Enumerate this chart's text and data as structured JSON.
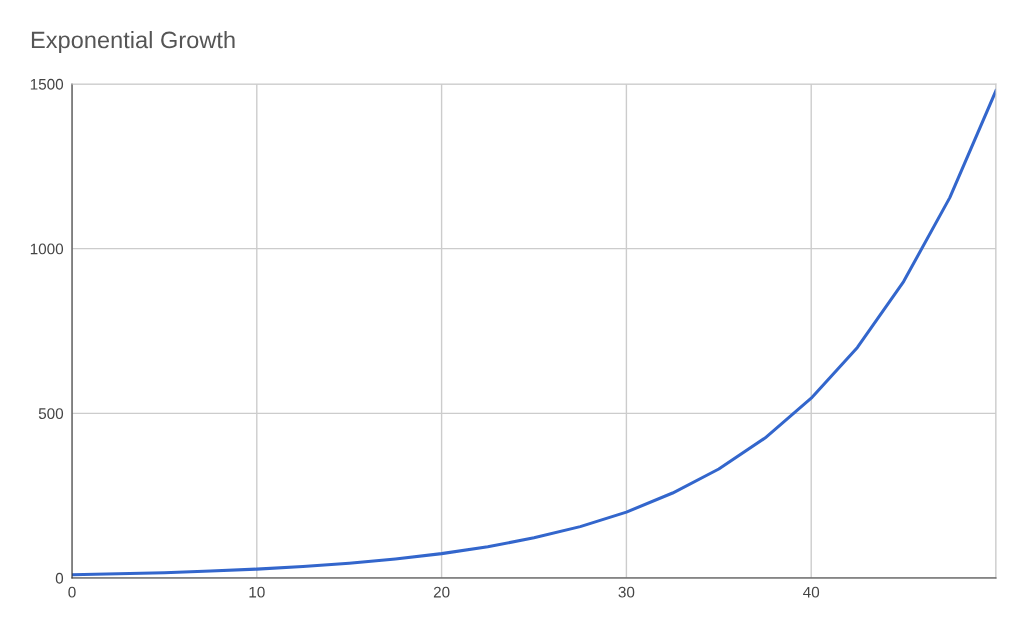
{
  "chart_data": {
    "type": "line",
    "title": "Exponential Growth",
    "x": [
      0,
      2.5,
      5,
      7.5,
      10,
      12.5,
      15,
      17.5,
      20,
      22.5,
      25,
      27.5,
      30,
      32.5,
      35,
      37.5,
      40,
      42.5,
      45,
      47.5,
      50
    ],
    "series": [
      {
        "color": "#3366cc",
        "values": [
          10,
          13,
          16,
          21,
          27,
          35,
          45,
          58,
          74,
          95,
          122,
          156,
          200,
          258,
          331,
          425,
          546,
          700,
          900,
          1155,
          1480
        ]
      }
    ],
    "xlim": [
      0,
      50
    ],
    "xticks": [
      0,
      10,
      20,
      30,
      40,
      {
        "value": 50,
        "label": null
      }
    ],
    "ylim": [
      0,
      1500
    ],
    "yticks": [
      0,
      500,
      1000,
      1500
    ],
    "grid": true,
    "marker": "none",
    "line_style": "solid"
  }
}
